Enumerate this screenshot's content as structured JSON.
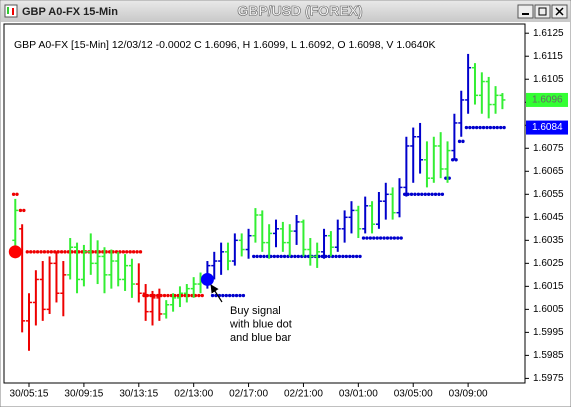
{
  "chart_data": {
    "type": "ohlc",
    "window_title": "GBP A0-FX 15-Min",
    "title": "GBP/USD (FOREX)",
    "header": "GBP A0-FX [15-Min] 12/03/12  -0.0002 C 1.6096, H 1.6099, L 1.6092, O 1.6098, V 1.0640K",
    "xlim": [
      -1.5,
      74
    ],
    "xticks": [
      {
        "value": 2,
        "label": "30/05:15"
      },
      {
        "value": 10,
        "label": "30/09:15"
      },
      {
        "value": 18,
        "label": "30/13:15"
      },
      {
        "value": 26,
        "label": "02/13:00"
      },
      {
        "value": 34,
        "label": "02/17:00"
      },
      {
        "value": 42,
        "label": "02/21:00"
      },
      {
        "value": 50,
        "label": "03/01:00"
      },
      {
        "value": 58,
        "label": "03/05:00"
      },
      {
        "value": 66,
        "label": "03/09:00"
      }
    ],
    "ylim": [
      1.5973,
      1.6129
    ],
    "yticks": [
      1.5975,
      1.5985,
      1.5995,
      1.6005,
      1.6015,
      1.6025,
      1.6035,
      1.6045,
      1.6055,
      1.6065,
      1.6075,
      1.6085,
      1.6095,
      1.6105,
      1.6115,
      1.6125
    ],
    "bars": {
      "open": [
        1.6035,
        1.604,
        1.6,
        1.6008,
        1.6018,
        1.6005,
        1.6025,
        1.6012,
        1.602,
        1.6032,
        1.6018,
        1.603,
        1.6025,
        1.6028,
        1.602,
        1.6026,
        1.6018,
        1.6024,
        1.6016,
        1.6012,
        1.6004,
        1.601,
        1.6003,
        1.6007,
        1.601,
        1.6012,
        1.6014,
        1.6016,
        1.6017,
        1.6024,
        1.6026,
        1.603,
        1.6026,
        1.6035,
        1.6031,
        1.6037,
        1.6046,
        1.6034,
        1.6038,
        1.604,
        1.6034,
        1.6039,
        1.6043,
        1.6031,
        1.6028,
        1.603,
        1.6037,
        1.6032,
        1.604,
        1.6045,
        1.6048,
        1.604,
        1.605,
        1.6042,
        1.6052,
        1.6055,
        1.6047,
        1.6058,
        1.6076,
        1.608,
        1.607,
        1.6062,
        1.6076,
        1.6066,
        1.6074,
        1.6086,
        1.6096,
        1.611,
        1.6098,
        1.6104,
        1.6094,
        1.6098
      ],
      "high": [
        1.6053,
        1.6042,
        1.6012,
        1.6022,
        1.6026,
        1.6028,
        1.603,
        1.6026,
        1.6036,
        1.6034,
        1.6033,
        1.6038,
        1.6035,
        1.6032,
        1.6031,
        1.603,
        1.6029,
        1.6027,
        1.6025,
        1.6016,
        1.6013,
        1.6014,
        1.6009,
        1.6012,
        1.6015,
        1.6016,
        1.6019,
        1.6021,
        1.6026,
        1.603,
        1.6034,
        1.6034,
        1.6038,
        1.6038,
        1.604,
        1.6049,
        1.6048,
        1.6042,
        1.6044,
        1.6043,
        1.6042,
        1.6046,
        1.6044,
        1.6036,
        1.6034,
        1.604,
        1.6039,
        1.6044,
        1.6048,
        1.6052,
        1.605,
        1.6054,
        1.6052,
        1.6056,
        1.606,
        1.6058,
        1.6062,
        1.608,
        1.6084,
        1.6086,
        1.6078,
        1.608,
        1.6082,
        1.6078,
        1.609,
        1.61,
        1.6116,
        1.6112,
        1.6108,
        1.6106,
        1.6102,
        1.6099
      ],
      "low": [
        1.603,
        1.5995,
        1.5987,
        1.5998,
        1.6,
        1.6003,
        1.6008,
        1.6002,
        1.6018,
        1.6012,
        1.6015,
        1.602,
        1.6016,
        1.6012,
        1.6014,
        1.6015,
        1.6013,
        1.601,
        1.6008,
        1.6,
        1.5998,
        1.6,
        1.6001,
        1.6004,
        1.6006,
        1.6008,
        1.601,
        1.6012,
        1.6014,
        1.6018,
        1.602,
        1.6022,
        1.6024,
        1.6028,
        1.6027,
        1.6034,
        1.603,
        1.6027,
        1.6032,
        1.603,
        1.6028,
        1.6033,
        1.6028,
        1.6024,
        1.6023,
        1.6027,
        1.6028,
        1.603,
        1.6034,
        1.6038,
        1.6036,
        1.6038,
        1.6038,
        1.604,
        1.6044,
        1.6044,
        1.6045,
        1.6054,
        1.606,
        1.6064,
        1.6058,
        1.606,
        1.6062,
        1.606,
        1.607,
        1.608,
        1.609,
        1.6094,
        1.609,
        1.6088,
        1.609,
        1.6092
      ],
      "close": [
        1.6048,
        1.6,
        1.6008,
        1.6018,
        1.6005,
        1.6025,
        1.6012,
        1.602,
        1.6032,
        1.6018,
        1.603,
        1.6025,
        1.6028,
        1.602,
        1.6026,
        1.6018,
        1.6024,
        1.6016,
        1.6012,
        1.6004,
        1.601,
        1.6003,
        1.6007,
        1.601,
        1.6012,
        1.6014,
        1.6016,
        1.6018,
        1.6024,
        1.6026,
        1.603,
        1.6026,
        1.6035,
        1.6031,
        1.6037,
        1.6046,
        1.6034,
        1.6038,
        1.604,
        1.6034,
        1.6039,
        1.6043,
        1.6031,
        1.6028,
        1.603,
        1.6037,
        1.6032,
        1.604,
        1.6045,
        1.6048,
        1.604,
        1.605,
        1.6042,
        1.6052,
        1.6055,
        1.6047,
        1.6058,
        1.6076,
        1.608,
        1.607,
        1.6062,
        1.6076,
        1.6066,
        1.6074,
        1.6086,
        1.6096,
        1.611,
        1.6098,
        1.6104,
        1.6094,
        1.6098,
        1.6096
      ],
      "colors": [
        "#33ee33",
        "#ee0000",
        "#ee0000",
        "#ee0000",
        "#ee0000",
        "#ee0000",
        "#ee0000",
        "#ee0000",
        "#33ee33",
        "#33ee33",
        "#33ee33",
        "#33ee33",
        "#33ee33",
        "#33ee33",
        "#33ee33",
        "#33ee33",
        "#33ee33",
        "#33ee33",
        "#ee0000",
        "#ee0000",
        "#ee0000",
        "#ee0000",
        "#33ee33",
        "#33ee33",
        "#33ee33",
        "#33ee33",
        "#33ee33",
        "#33ee33",
        "#0000cc",
        "#0000cc",
        "#0000cc",
        "#33ee33",
        "#0000cc",
        "#33ee33",
        "#0000cc",
        "#33ee33",
        "#33ee33",
        "#33ee33",
        "#0000cc",
        "#33ee33",
        "#33ee33",
        "#0000cc",
        "#33ee33",
        "#33ee33",
        "#33ee33",
        "#0000cc",
        "#33ee33",
        "#0000cc",
        "#0000cc",
        "#0000cc",
        "#33ee33",
        "#0000cc",
        "#33ee33",
        "#0000cc",
        "#0000cc",
        "#33ee33",
        "#0000cc",
        "#0000cc",
        "#0000cc",
        "#0000cc",
        "#33ee33",
        "#33ee33",
        "#33ee33",
        "#33ee33",
        "#0000cc",
        "#0000cc",
        "#0000cc",
        "#33ee33",
        "#33ee33",
        "#33ee33",
        "#33ee33",
        "#33ee33"
      ]
    },
    "stops": [
      {
        "color": "#ee0000",
        "values": [
          1.6055,
          1.6048,
          1.603,
          1.603,
          1.603,
          1.603,
          1.603,
          1.603,
          1.603,
          1.603,
          1.603,
          1.603,
          1.603,
          1.603,
          1.603,
          1.603,
          1.603,
          1.603,
          1.603,
          1.6011,
          1.6011,
          1.6011,
          1.6011,
          1.6011,
          1.6011,
          1.6011,
          1.6011,
          1.6011,
          null,
          null,
          null,
          null,
          null,
          null,
          null,
          null,
          null,
          null,
          null,
          null,
          null,
          null,
          null,
          null,
          null,
          null,
          null,
          null,
          null,
          null,
          null,
          null,
          null,
          null,
          null,
          null,
          null,
          null,
          null,
          null,
          null,
          null,
          null,
          null,
          null,
          null,
          null,
          null,
          null,
          null,
          null,
          null
        ]
      },
      {
        "color": "#0000cc",
        "values": [
          null,
          null,
          null,
          null,
          null,
          null,
          null,
          null,
          null,
          null,
          null,
          null,
          null,
          null,
          null,
          null,
          null,
          null,
          null,
          null,
          null,
          null,
          null,
          null,
          null,
          null,
          null,
          null,
          null,
          1.6011,
          1.6011,
          1.6011,
          1.6011,
          1.6011,
          null,
          1.6028,
          1.6028,
          1.6028,
          1.6028,
          1.6028,
          1.6028,
          1.6028,
          1.6028,
          1.6028,
          1.6028,
          1.6028,
          1.6028,
          1.6028,
          1.6028,
          1.6028,
          1.6028,
          1.6036,
          1.6036,
          1.6036,
          1.6036,
          1.6036,
          1.6036,
          1.6055,
          1.6055,
          1.6055,
          1.6055,
          1.6055,
          1.6055,
          1.6062,
          1.607,
          1.6078,
          1.6084,
          1.6084,
          1.6084,
          1.6084,
          1.6084,
          1.6084
        ]
      }
    ],
    "signals": [
      {
        "x": 0,
        "value": 1.603,
        "color": "#ff0000"
      },
      {
        "x": 28,
        "value": 1.6018,
        "color": "#0000ff"
      }
    ],
    "price_labels": [
      {
        "value": 1.6096,
        "color": "#33ff33",
        "text_color": "#666666"
      },
      {
        "value": 1.6084,
        "color": "#0000ff",
        "text_color": "#ffffff"
      }
    ],
    "annotation": [
      "Buy signal",
      "with blue dot",
      "and blue bar"
    ]
  }
}
